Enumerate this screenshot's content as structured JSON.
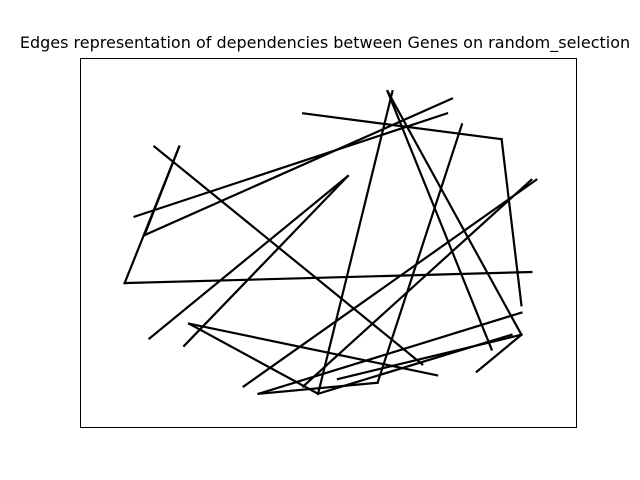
{
  "chart_data": {
    "type": "line",
    "title": "Edges representation of dependencies between Genes on random_selection",
    "xlabel": "",
    "ylabel": "",
    "xticks": [],
    "yticks": [],
    "grid": false,
    "line_color": "#000000",
    "xlim": [
      0,
      100
    ],
    "ylim": [
      0,
      100
    ],
    "edges": [
      [
        [
          9,
          39
        ],
        [
          20,
          76
        ]
      ],
      [
        [
          20,
          76
        ],
        [
          13,
          52
        ]
      ],
      [
        [
          13,
          52
        ],
        [
          75,
          89
        ]
      ],
      [
        [
          9,
          39
        ],
        [
          91,
          42
        ]
      ],
      [
        [
          15,
          76
        ],
        [
          69,
          17
        ]
      ],
      [
        [
          22,
          28
        ],
        [
          72,
          14
        ]
      ],
      [
        [
          22,
          28
        ],
        [
          48,
          9
        ]
      ],
      [
        [
          48,
          9
        ],
        [
          87,
          25
        ]
      ],
      [
        [
          48,
          9
        ],
        [
          63,
          91
        ]
      ],
      [
        [
          36,
          9
        ],
        [
          89,
          31
        ]
      ],
      [
        [
          36,
          9
        ],
        [
          60,
          12
        ]
      ],
      [
        [
          60,
          12
        ],
        [
          77,
          82
        ]
      ],
      [
        [
          62,
          91
        ],
        [
          83,
          21
        ]
      ],
      [
        [
          62,
          91
        ],
        [
          89,
          25
        ]
      ],
      [
        [
          89,
          25
        ],
        [
          80,
          15
        ]
      ],
      [
        [
          52,
          13
        ],
        [
          89,
          25
        ]
      ],
      [
        [
          45,
          11
        ],
        [
          91,
          67
        ]
      ],
      [
        [
          33,
          11
        ],
        [
          92,
          67
        ]
      ],
      [
        [
          14,
          24
        ],
        [
          54,
          68
        ]
      ],
      [
        [
          21,
          22
        ],
        [
          54,
          68
        ]
      ],
      [
        [
          11,
          57
        ],
        [
          74,
          85
        ]
      ],
      [
        [
          45,
          85
        ],
        [
          85,
          78
        ]
      ],
      [
        [
          85,
          78
        ],
        [
          89,
          33
        ]
      ]
    ]
  }
}
